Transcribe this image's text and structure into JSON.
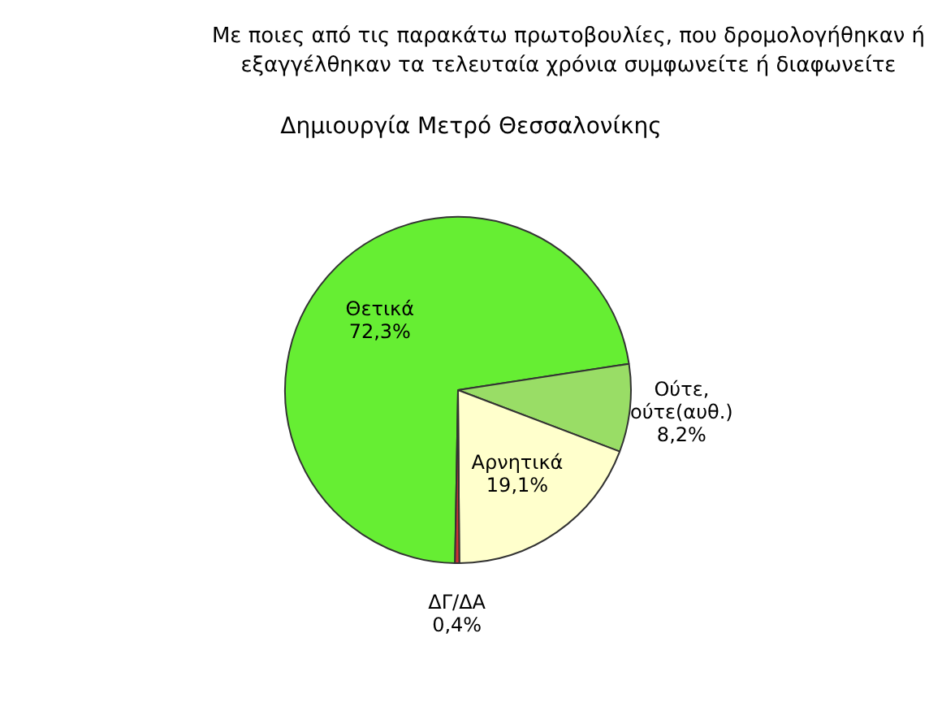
{
  "chart_data": {
    "type": "pie",
    "title": "Με ποιες από τις παρακάτω πρωτοβουλίες, που δρομολογήθηκαν ή εξαγγέλθηκαν τα τελευταία χρόνια συμφωνείτε ή διαφωνείτε",
    "subtitle": "Δημιουργία Μετρό Θεσσαλονίκης",
    "categories": [
      "Θετικά",
      "Ούτε, ούτε(αυθ.)",
      "Αρνητικά",
      "ΔΓ/ΔΑ"
    ],
    "values": [
      72.3,
      8.2,
      19.1,
      0.4
    ],
    "colors": [
      "#66ee33",
      "#99dd66",
      "#ffffcc",
      "#cc3333"
    ],
    "value_labels": [
      "72,3%",
      "8,2%",
      "19,1%",
      "0,4%"
    ]
  }
}
